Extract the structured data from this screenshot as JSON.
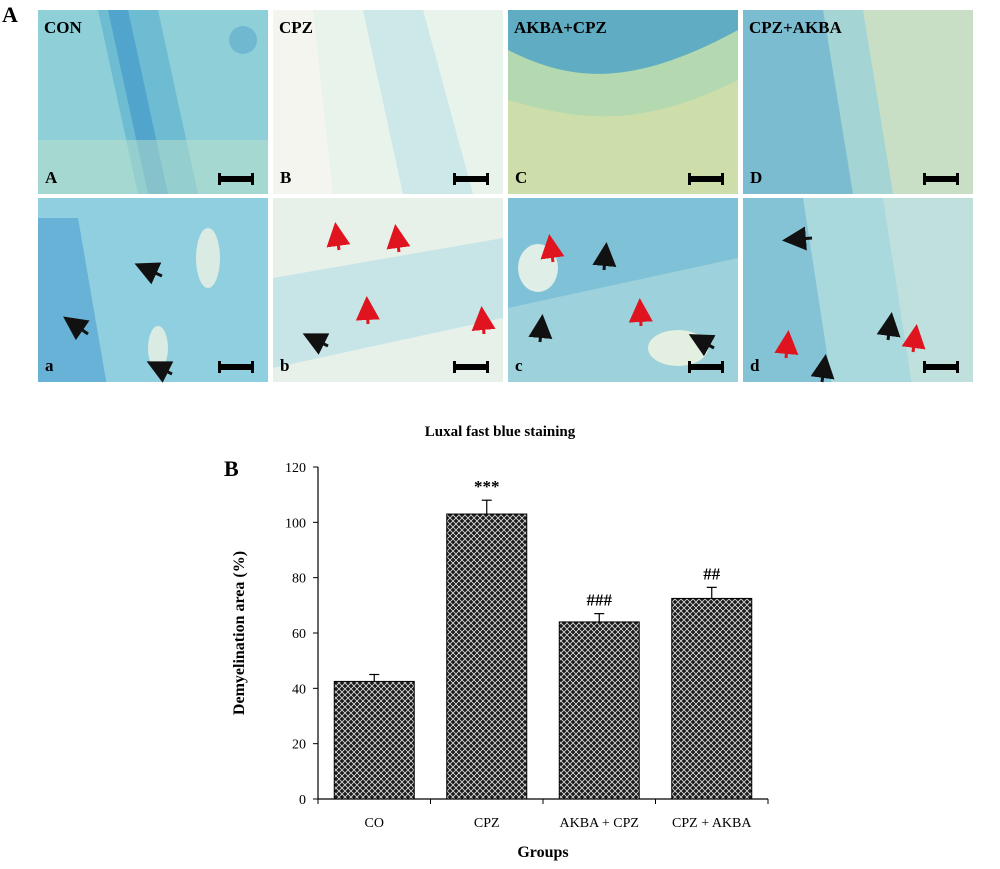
{
  "figure": {
    "part_a_letter": "A",
    "part_b_letter": "B"
  },
  "panels": {
    "columns": [
      "CON",
      "CPZ",
      "AKBA+CPZ",
      "CPZ+AKBA"
    ],
    "top_labels": [
      "A",
      "B",
      "C",
      "D"
    ],
    "bottom_labels": [
      "a",
      "b",
      "c",
      "d"
    ],
    "arrow_colors": {
      "myelin": "#111111",
      "demyelination": "#e0141e"
    }
  },
  "chart_data": {
    "type": "bar",
    "title": "Luxal fast blue staining",
    "xlabel": "Groups",
    "ylabel": "Demyelination area (%)",
    "categories": [
      "CO",
      "CPZ",
      "AKBA + CPZ",
      "CPZ + AKBA"
    ],
    "values": [
      42.5,
      103,
      64,
      72.5
    ],
    "errors": [
      2.5,
      5,
      3,
      4
    ],
    "annotations": [
      "",
      "***",
      "###",
      "##"
    ],
    "ylim": [
      0,
      120
    ],
    "yticks": [
      0,
      20,
      40,
      60,
      80,
      100,
      120
    ],
    "bar_pattern": "crosshatch",
    "bar_color": "#1a1a1a",
    "grid": false
  }
}
